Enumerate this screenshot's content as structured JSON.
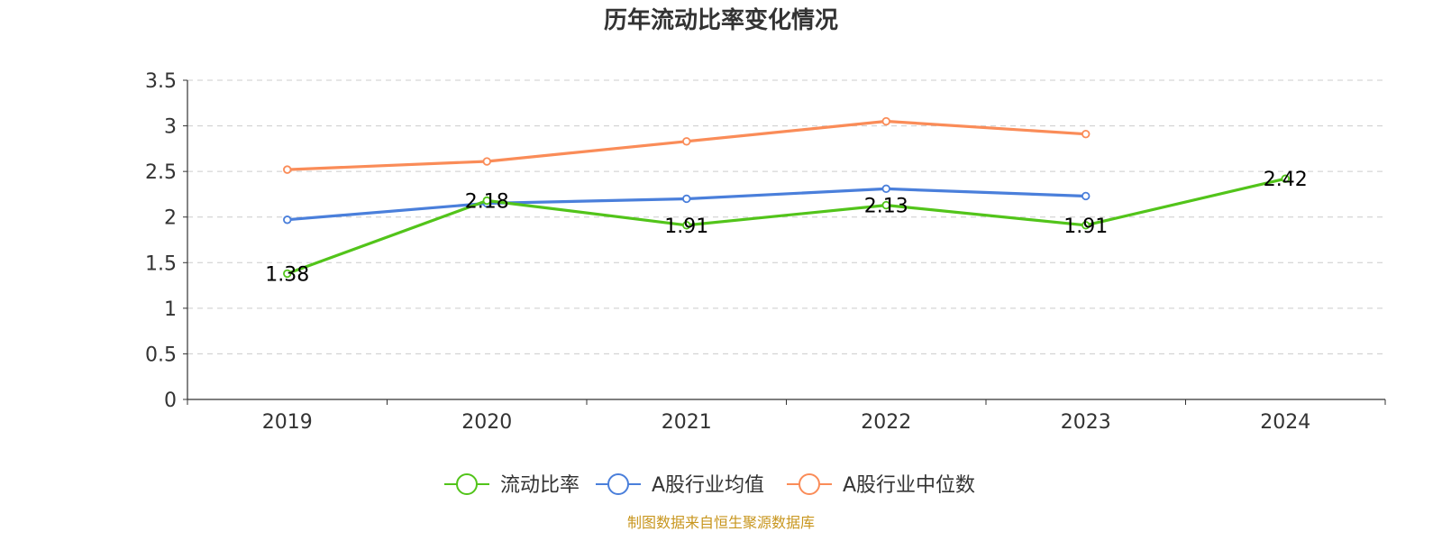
{
  "chart_data": {
    "type": "line",
    "title": "历年流动比率变化情况",
    "xlabel": "",
    "ylabel": "",
    "categories": [
      "2019",
      "2020",
      "2021",
      "2022",
      "2023",
      "2024"
    ],
    "ylim": [
      0,
      3.5
    ],
    "yticks": [
      "0",
      "0.5",
      "1",
      "1.5",
      "2",
      "2.5",
      "3",
      "3.5"
    ],
    "grid": true,
    "legend_position": "bottom",
    "series": [
      {
        "name": "流动比率",
        "color": "#52c41a",
        "show_labels": true,
        "values": [
          1.38,
          2.18,
          1.91,
          2.13,
          1.91,
          2.42
        ],
        "labels": [
          "1.38",
          "2.18",
          "1.91",
          "2.13",
          "1.91",
          "2.42"
        ]
      },
      {
        "name": "A股行业均值",
        "color": "#4a7fdb",
        "show_labels": false,
        "values": [
          1.97,
          2.15,
          2.2,
          2.31,
          2.23,
          null
        ]
      },
      {
        "name": "A股行业中位数",
        "color": "#fa8c58",
        "show_labels": false,
        "values": [
          2.52,
          2.61,
          2.83,
          3.05,
          2.91,
          null
        ]
      }
    ]
  },
  "source_text": "制图数据来自恒生聚源数据库",
  "source_color": "#c8961e"
}
